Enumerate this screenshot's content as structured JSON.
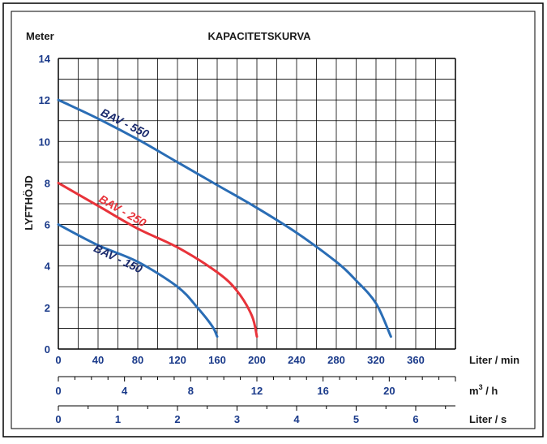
{
  "chart_data": {
    "type": "line",
    "title": "KAPACITETSKURVA",
    "ylabel_top": "Meter",
    "ylabel_side": "LYFTHÖJD",
    "xlim": [
      0,
      400
    ],
    "ylim": [
      0,
      14
    ],
    "grid": true,
    "y_ticks": [
      0,
      2,
      4,
      6,
      8,
      10,
      12,
      14
    ],
    "x_axes": [
      {
        "unit": "Liter / min",
        "ticks": [
          "0",
          "40",
          "80",
          "120",
          "160",
          "200",
          "240",
          "280",
          "320",
          "360"
        ],
        "values": [
          0,
          40,
          80,
          120,
          160,
          200,
          240,
          280,
          320,
          360
        ]
      },
      {
        "unit_main": "m",
        "unit_sup": "3",
        "unit_rest": "/ h",
        "ticks": [
          "0",
          "4",
          "8",
          "12",
          "16",
          "20"
        ],
        "values": [
          0,
          66.67,
          133.33,
          200,
          266.67,
          333.33
        ]
      },
      {
        "unit": "Liter / s",
        "ticks": [
          "0",
          "1",
          "2",
          "3",
          "4",
          "5",
          "6"
        ],
        "values": [
          0,
          60,
          120,
          180,
          240,
          300,
          360
        ]
      }
    ],
    "series": [
      {
        "name": "BAV - 550",
        "color": "#2a6db5",
        "label_color": "#1a2a6c",
        "x": [
          0,
          40,
          80,
          120,
          160,
          200,
          240,
          280,
          300,
          320,
          335
        ],
        "y": [
          12,
          11.1,
          10.1,
          9.0,
          7.9,
          6.8,
          5.6,
          4.2,
          3.3,
          2.2,
          0.6
        ]
      },
      {
        "name": "BAV - 250",
        "color": "#e8333a",
        "label_color": "#e8333a",
        "x": [
          0,
          40,
          80,
          120,
          160,
          180,
          195,
          200
        ],
        "y": [
          8,
          6.9,
          5.8,
          4.9,
          3.7,
          2.8,
          1.6,
          0.6
        ]
      },
      {
        "name": "BAV - 150",
        "color": "#2a6db5",
        "label_color": "#1a2a6c",
        "x": [
          0,
          40,
          80,
          120,
          140,
          155,
          160
        ],
        "y": [
          6,
          5.0,
          4.2,
          3.0,
          2.0,
          1.1,
          0.6
        ]
      }
    ]
  }
}
